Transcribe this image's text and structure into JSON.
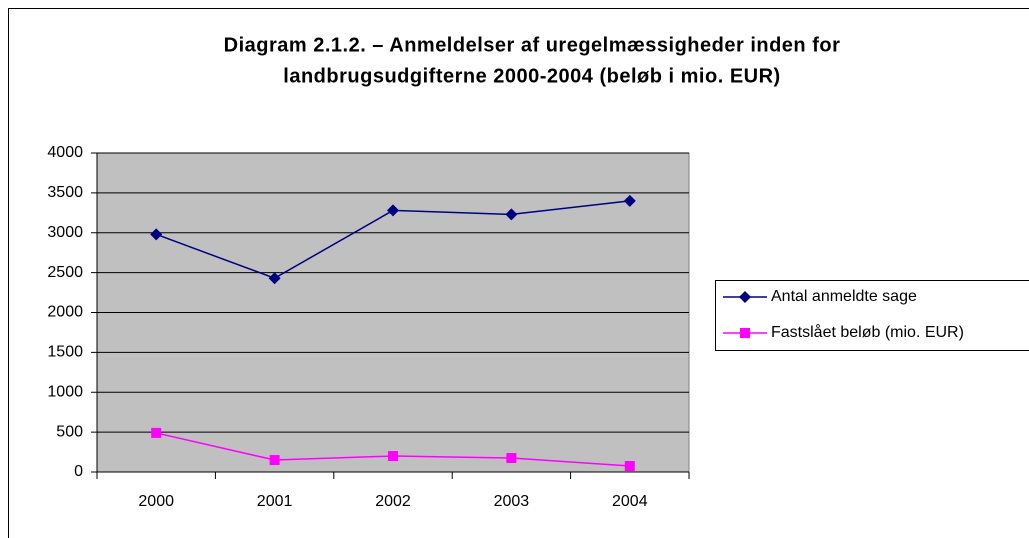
{
  "chart_data": {
    "type": "line",
    "title": [
      "Diagram 2.1.2. – Anmeldelser af uregelmæssigheder inden for",
      "landbrugsudgifterne 2000-2004 (beløb i mio. EUR)"
    ],
    "categories": [
      "2000",
      "2001",
      "2002",
      "2003",
      "2004"
    ],
    "series": [
      {
        "name": "Antal anmeldte sage",
        "color": "#000080",
        "marker": "diamond",
        "values": [
          2980,
          2430,
          3280,
          3230,
          3400
        ]
      },
      {
        "name": "Fastslået beløb (mio. EUR)",
        "color": "#ff00ff",
        "marker": "square",
        "values": [
          490,
          150,
          200,
          175,
          75
        ]
      }
    ],
    "ylim": [
      0,
      4000
    ],
    "yticks": [
      0,
      500,
      1000,
      1500,
      2000,
      2500,
      3000,
      3500,
      4000
    ],
    "grid": true,
    "legend": "right"
  }
}
